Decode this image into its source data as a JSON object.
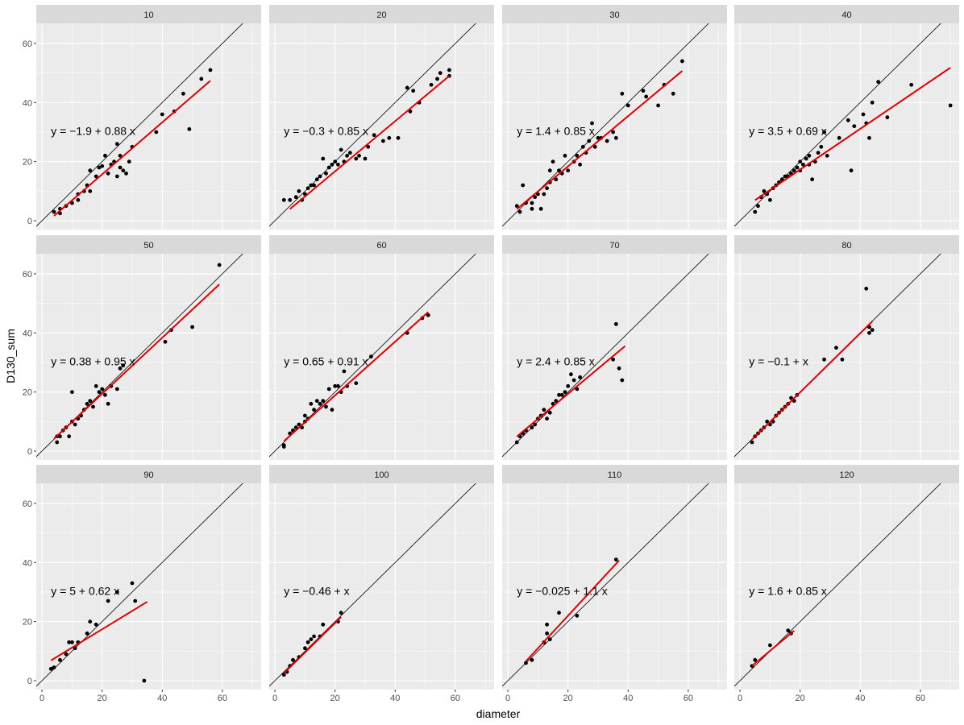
{
  "chart_data": {
    "type": "scatter",
    "facet_variable_values": [
      "10",
      "20",
      "30",
      "40",
      "50",
      "60",
      "70",
      "80",
      "90",
      "100",
      "110",
      "120"
    ],
    "xlabel": "diameter",
    "ylabel": "D130_sum",
    "xlim": [
      -1.9,
      72.9
    ],
    "ylim": [
      -3,
      66.8
    ],
    "x_ticks": [
      0,
      20,
      40,
      60
    ],
    "y_ticks": [
      0,
      20,
      40,
      60
    ],
    "grid": true,
    "reference_line": "y = x",
    "colors": {
      "points": "#000000",
      "fit": "#E00000",
      "reference": "#000000",
      "panel_bg": "#EBEBEB",
      "strip_bg": "#D9D9D9"
    },
    "panels": [
      {
        "label": "10",
        "equation": "y = −1.9 + 0.88 x",
        "intercept": -1.9,
        "slope": 0.88,
        "fit_range": [
          4,
          56
        ],
        "points": [
          [
            4,
            3
          ],
          [
            6,
            2.5
          ],
          [
            6,
            4
          ],
          [
            8,
            5
          ],
          [
            10,
            6
          ],
          [
            12,
            7
          ],
          [
            12,
            9
          ],
          [
            14,
            10
          ],
          [
            15,
            12
          ],
          [
            16,
            10
          ],
          [
            16,
            17
          ],
          [
            18,
            15
          ],
          [
            19,
            18
          ],
          [
            20,
            18.5
          ],
          [
            21,
            22
          ],
          [
            22,
            16
          ],
          [
            23,
            19
          ],
          [
            24,
            20
          ],
          [
            25,
            15
          ],
          [
            25,
            26
          ],
          [
            26,
            22
          ],
          [
            27,
            17
          ],
          [
            26,
            18
          ],
          [
            28,
            16
          ],
          [
            29,
            20
          ],
          [
            30,
            25
          ],
          [
            38,
            30
          ],
          [
            40,
            36
          ],
          [
            44,
            37
          ],
          [
            47,
            43
          ],
          [
            49,
            31
          ],
          [
            53,
            48
          ],
          [
            56,
            51
          ]
        ]
      },
      {
        "label": "20",
        "equation": "y = −0.3 + 0.85 x",
        "intercept": -0.3,
        "slope": 0.85,
        "fit_range": [
          5,
          58
        ],
        "points": [
          [
            3,
            7
          ],
          [
            5,
            7
          ],
          [
            7,
            8
          ],
          [
            8,
            10
          ],
          [
            9,
            7
          ],
          [
            10,
            9
          ],
          [
            11,
            11
          ],
          [
            12,
            12
          ],
          [
            13,
            12
          ],
          [
            14,
            14
          ],
          [
            15,
            15
          ],
          [
            16,
            21
          ],
          [
            17,
            16
          ],
          [
            18,
            18
          ],
          [
            19,
            19
          ],
          [
            20,
            20
          ],
          [
            21,
            19
          ],
          [
            22,
            24
          ],
          [
            23,
            20
          ],
          [
            24,
            22
          ],
          [
            25,
            23
          ],
          [
            27,
            21
          ],
          [
            28,
            22
          ],
          [
            30,
            21
          ],
          [
            31,
            25
          ],
          [
            33,
            29
          ],
          [
            36,
            27
          ],
          [
            38,
            28
          ],
          [
            41,
            28
          ],
          [
            44,
            45
          ],
          [
            45,
            37
          ],
          [
            46,
            44
          ],
          [
            48,
            40
          ],
          [
            52,
            46
          ],
          [
            54,
            48
          ],
          [
            55,
            50
          ],
          [
            58,
            51
          ],
          [
            58,
            49
          ]
        ]
      },
      {
        "label": "30",
        "equation": "y = 1.4 + 0.85 x",
        "intercept": 1.4,
        "slope": 0.85,
        "fit_range": [
          3,
          58
        ],
        "points": [
          [
            3,
            5
          ],
          [
            4,
            3
          ],
          [
            5,
            12
          ],
          [
            6,
            6
          ],
          [
            8,
            4
          ],
          [
            8,
            6
          ],
          [
            9,
            8
          ],
          [
            10,
            9
          ],
          [
            11,
            4
          ],
          [
            12,
            9
          ],
          [
            13,
            11
          ],
          [
            14,
            13
          ],
          [
            14,
            17
          ],
          [
            15,
            20
          ],
          [
            16,
            14
          ],
          [
            17,
            17
          ],
          [
            18,
            16
          ],
          [
            19,
            22
          ],
          [
            20,
            17
          ],
          [
            22,
            20
          ],
          [
            23,
            22
          ],
          [
            24,
            19
          ],
          [
            25,
            25
          ],
          [
            26,
            23
          ],
          [
            27,
            27
          ],
          [
            28,
            33
          ],
          [
            29,
            25
          ],
          [
            30,
            28
          ],
          [
            31,
            28
          ],
          [
            33,
            27
          ],
          [
            35,
            30
          ],
          [
            36,
            28
          ],
          [
            38,
            43
          ],
          [
            40,
            39
          ],
          [
            45,
            44
          ],
          [
            46,
            42
          ],
          [
            50,
            39
          ],
          [
            52,
            46
          ],
          [
            55,
            43
          ],
          [
            58,
            54
          ]
        ]
      },
      {
        "label": "40",
        "equation": "y = 3.5 + 0.69 x",
        "intercept": 3.5,
        "slope": 0.69,
        "fit_range": [
          5,
          70
        ],
        "points": [
          [
            5,
            3
          ],
          [
            6,
            5
          ],
          [
            7,
            8
          ],
          [
            8,
            10
          ],
          [
            9,
            9
          ],
          [
            10,
            7
          ],
          [
            11,
            11
          ],
          [
            12,
            12
          ],
          [
            13,
            13
          ],
          [
            14,
            14
          ],
          [
            15,
            15
          ],
          [
            16,
            15
          ],
          [
            17,
            16
          ],
          [
            18,
            17
          ],
          [
            19,
            18
          ],
          [
            20,
            20
          ],
          [
            20,
            17
          ],
          [
            21,
            19
          ],
          [
            22,
            21
          ],
          [
            23,
            22
          ],
          [
            23,
            19
          ],
          [
            24,
            14
          ],
          [
            25,
            20
          ],
          [
            26,
            23
          ],
          [
            27,
            25
          ],
          [
            28,
            30
          ],
          [
            29,
            22
          ],
          [
            33,
            28
          ],
          [
            36,
            34
          ],
          [
            37,
            17
          ],
          [
            38,
            32
          ],
          [
            41,
            36
          ],
          [
            42,
            33
          ],
          [
            43,
            28
          ],
          [
            44,
            40
          ],
          [
            46,
            47
          ],
          [
            49,
            35
          ],
          [
            57,
            46
          ],
          [
            70,
            39
          ]
        ]
      },
      {
        "label": "50",
        "equation": "y = 0.38 + 0.95 x",
        "intercept": 0.38,
        "slope": 0.95,
        "fit_range": [
          4,
          59
        ],
        "points": [
          [
            5,
            3
          ],
          [
            5,
            5
          ],
          [
            6,
            5
          ],
          [
            7,
            7
          ],
          [
            8,
            8
          ],
          [
            9,
            5
          ],
          [
            10,
            10
          ],
          [
            11,
            9
          ],
          [
            12,
            11
          ],
          [
            13,
            12
          ],
          [
            14,
            14
          ],
          [
            15,
            16
          ],
          [
            16,
            17
          ],
          [
            17,
            15
          ],
          [
            18,
            22
          ],
          [
            19,
            20
          ],
          [
            20,
            21
          ],
          [
            21,
            19
          ],
          [
            22,
            16
          ],
          [
            23,
            22
          ],
          [
            25,
            21
          ],
          [
            26,
            28
          ],
          [
            27,
            29
          ],
          [
            10,
            20
          ],
          [
            41,
            37
          ],
          [
            43,
            41
          ],
          [
            50,
            42
          ],
          [
            59,
            63
          ]
        ]
      },
      {
        "label": "60",
        "equation": "y = 0.65 + 0.91 x",
        "intercept": 0.65,
        "slope": 0.91,
        "fit_range": [
          3,
          51
        ],
        "points": [
          [
            3,
            2
          ],
          [
            3,
            1.5
          ],
          [
            5,
            6
          ],
          [
            6,
            7
          ],
          [
            7,
            8
          ],
          [
            8,
            9
          ],
          [
            9,
            8
          ],
          [
            10,
            10
          ],
          [
            10,
            12
          ],
          [
            11,
            11
          ],
          [
            12,
            16
          ],
          [
            13,
            14
          ],
          [
            14,
            17
          ],
          [
            15,
            16
          ],
          [
            16,
            17
          ],
          [
            17,
            15
          ],
          [
            18,
            21
          ],
          [
            19,
            14
          ],
          [
            20,
            22
          ],
          [
            21,
            22
          ],
          [
            22,
            20
          ],
          [
            23,
            27
          ],
          [
            24,
            22
          ],
          [
            27,
            23
          ],
          [
            32,
            32
          ],
          [
            44,
            40
          ],
          [
            49,
            45
          ],
          [
            51,
            46
          ]
        ]
      },
      {
        "label": "70",
        "equation": "y = 2.4 + 0.85 x",
        "intercept": 2.4,
        "slope": 0.85,
        "fit_range": [
          3,
          39
        ],
        "points": [
          [
            3,
            3
          ],
          [
            4,
            5
          ],
          [
            5,
            6
          ],
          [
            6,
            7
          ],
          [
            8,
            8
          ],
          [
            9,
            9
          ],
          [
            10,
            11
          ],
          [
            11,
            12
          ],
          [
            12,
            14
          ],
          [
            13,
            11
          ],
          [
            14,
            13
          ],
          [
            15,
            16
          ],
          [
            16,
            17
          ],
          [
            17,
            19
          ],
          [
            18,
            19
          ],
          [
            19,
            20
          ],
          [
            20,
            22
          ],
          [
            21,
            26
          ],
          [
            22,
            24
          ],
          [
            23,
            21
          ],
          [
            24,
            25
          ],
          [
            35,
            31
          ],
          [
            36,
            43
          ],
          [
            37,
            28
          ],
          [
            38,
            24
          ]
        ]
      },
      {
        "label": "80",
        "equation": "y = −0.1 + x",
        "intercept": -0.1,
        "slope": 1.0,
        "fit_range": [
          4,
          44
        ],
        "points": [
          [
            4,
            3
          ],
          [
            5,
            5
          ],
          [
            6,
            6
          ],
          [
            7,
            7
          ],
          [
            8,
            8
          ],
          [
            9,
            10
          ],
          [
            10,
            9
          ],
          [
            11,
            10
          ],
          [
            12,
            12
          ],
          [
            13,
            13
          ],
          [
            14,
            14
          ],
          [
            15,
            15
          ],
          [
            16,
            16
          ],
          [
            17,
            18
          ],
          [
            18,
            17
          ],
          [
            19,
            19
          ],
          [
            28,
            31
          ],
          [
            32,
            35
          ],
          [
            34,
            31
          ],
          [
            42,
            55
          ],
          [
            43,
            40
          ],
          [
            43,
            42
          ],
          [
            44,
            41
          ]
        ]
      },
      {
        "label": "90",
        "equation": "y = 5 + 0.62 x",
        "intercept": 5,
        "slope": 0.62,
        "fit_range": [
          3,
          35
        ],
        "points": [
          [
            3,
            4
          ],
          [
            4,
            4.5
          ],
          [
            6,
            7
          ],
          [
            8,
            9
          ],
          [
            9,
            13
          ],
          [
            10,
            13
          ],
          [
            11,
            11
          ],
          [
            12,
            13
          ],
          [
            15,
            16
          ],
          [
            16,
            20
          ],
          [
            18,
            19
          ],
          [
            22,
            27
          ],
          [
            25,
            30
          ],
          [
            30,
            33
          ],
          [
            31,
            27
          ],
          [
            34,
            0
          ]
        ]
      },
      {
        "label": "100",
        "equation": "y = −0.46 + x",
        "intercept": -0.46,
        "slope": 1.0,
        "fit_range": [
          3,
          22
        ],
        "points": [
          [
            3,
            2
          ],
          [
            4,
            3
          ],
          [
            5,
            5
          ],
          [
            6,
            7
          ],
          [
            8,
            8
          ],
          [
            10,
            11
          ],
          [
            11,
            13
          ],
          [
            12,
            14
          ],
          [
            13,
            15
          ],
          [
            15,
            15
          ],
          [
            16,
            19
          ],
          [
            21,
            20
          ],
          [
            22,
            23
          ]
        ]
      },
      {
        "label": "110",
        "equation": "y = −0.025 + 1.1 x",
        "intercept": -0.025,
        "slope": 1.1,
        "fit_range": [
          6,
          37
        ],
        "points": [
          [
            6,
            6
          ],
          [
            8,
            7
          ],
          [
            12,
            13
          ],
          [
            13,
            16
          ],
          [
            13,
            19
          ],
          [
            14,
            14
          ],
          [
            17,
            23
          ],
          [
            23,
            22
          ],
          [
            36,
            41
          ]
        ]
      },
      {
        "label": "120",
        "equation": "y = 1.6 + 0.85 x",
        "intercept": 1.6,
        "slope": 0.85,
        "fit_range": [
          4,
          18
        ],
        "points": [
          [
            4,
            5
          ],
          [
            5,
            7
          ],
          [
            10,
            12
          ],
          [
            16,
            17
          ],
          [
            17,
            16
          ]
        ]
      }
    ]
  }
}
